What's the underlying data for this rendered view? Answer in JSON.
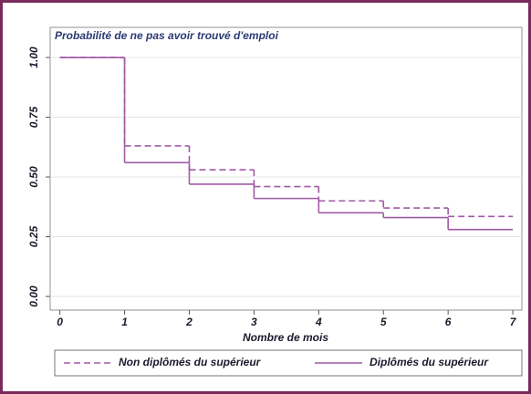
{
  "chart_data": {
    "type": "step",
    "title": "Probabilité de ne pas avoir trouvé d'emploi",
    "x_label": "Nombre de mois",
    "series": [
      {
        "name": "Non diplômés du supérieur",
        "color": "#a05aa6",
        "dash": true,
        "x": [
          0,
          1,
          2,
          3,
          4,
          5,
          6,
          7
        ],
        "values": [
          1.0,
          0.63,
          0.53,
          0.46,
          0.4,
          0.37,
          0.335,
          0.335
        ]
      },
      {
        "name": "Diplômés du supérieur",
        "color": "#a05aa6",
        "dash": false,
        "x": [
          0,
          1,
          2,
          3,
          4,
          5,
          6,
          7
        ],
        "values": [
          1.0,
          0.56,
          0.47,
          0.41,
          0.35,
          0.33,
          0.28,
          0.28
        ]
      }
    ],
    "xlim": [
      -0.15,
      7.14
    ],
    "xticks": [
      0,
      1,
      2,
      3,
      4,
      5,
      6,
      7
    ],
    "ylim": [
      -0.057,
      1.126
    ],
    "yticks": [
      {
        "value": 0,
        "label": "0.00"
      },
      {
        "value": 0.25,
        "label": "0.25"
      },
      {
        "value": 0.5,
        "label": "0.50"
      },
      {
        "value": 0.75,
        "label": "0.75"
      },
      {
        "value": 1,
        "label": "1.00"
      }
    ],
    "grid": true,
    "legend": "bottom"
  }
}
